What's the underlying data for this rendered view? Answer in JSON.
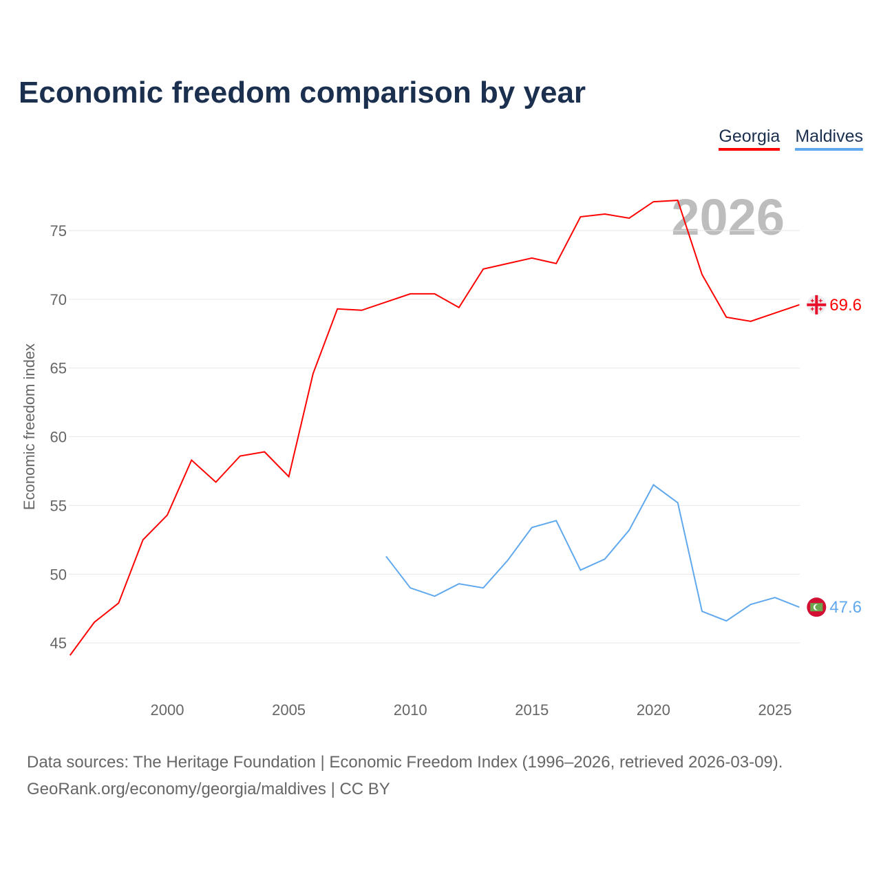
{
  "title": "Economic freedom comparison by year",
  "source_line1": "Data sources: The Heritage Foundation | Economic Freedom Index (1996–2026, retrieved 2026-03-09).",
  "source_line2": "GeoRank.org/economy/georgia/maldives | CC BY",
  "chart_data": {
    "type": "line",
    "title": "Economic freedom comparison by year",
    "xlabel": "",
    "ylabel": "Economic freedom index",
    "year_watermark": "2026",
    "xlim": [
      1996,
      2026
    ],
    "ylim": [
      41.5,
      78.5
    ],
    "xticks": [
      2000,
      2005,
      2010,
      2015,
      2020,
      2025
    ],
    "yticks": [
      45,
      50,
      55,
      60,
      65,
      70,
      75
    ],
    "grid": true,
    "legend_position": "top-right",
    "series": [
      {
        "name": "Georgia",
        "color": "#ff0000",
        "end_label": "69.6",
        "x": [
          1996,
          1997,
          1998,
          1999,
          2000,
          2001,
          2002,
          2003,
          2004,
          2005,
          2006,
          2007,
          2008,
          2009,
          2010,
          2011,
          2012,
          2013,
          2014,
          2015,
          2016,
          2017,
          2018,
          2019,
          2020,
          2021,
          2022,
          2023,
          2024,
          2025,
          2026
        ],
        "values": [
          44.1,
          46.5,
          47.9,
          52.5,
          54.3,
          58.3,
          56.7,
          58.6,
          58.9,
          57.1,
          64.6,
          69.3,
          69.2,
          69.8,
          70.4,
          70.4,
          69.4,
          72.2,
          72.6,
          73.0,
          72.6,
          76.0,
          76.2,
          75.9,
          77.1,
          77.2,
          71.8,
          68.7,
          68.4,
          69.0,
          69.6
        ]
      },
      {
        "name": "Maldives",
        "color": "#5fa8ee",
        "end_label": "47.6",
        "x": [
          2009,
          2010,
          2011,
          2012,
          2013,
          2014,
          2015,
          2016,
          2017,
          2018,
          2019,
          2020,
          2021,
          2022,
          2023,
          2024,
          2025,
          2026
        ],
        "values": [
          51.3,
          49.0,
          48.4,
          49.3,
          49.0,
          51.0,
          53.4,
          53.9,
          50.3,
          51.1,
          53.2,
          56.5,
          55.2,
          47.3,
          46.6,
          47.8,
          48.3,
          47.6
        ]
      }
    ]
  }
}
